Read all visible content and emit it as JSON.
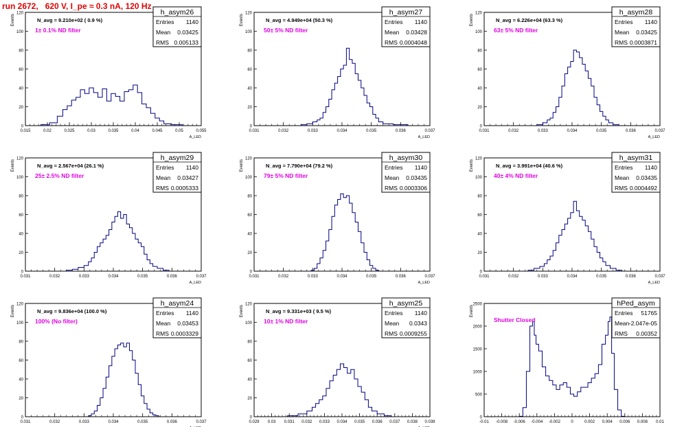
{
  "page_title": "run 2672,   620 V, I_pe ≈ 0.3 nA, 120 Hz",
  "stats_labels": {
    "entries": "Entries",
    "mean": "Mean",
    "rms": "RMS"
  },
  "chart_data": [
    {
      "type": "bar",
      "hist_name": "h_asym26",
      "navg_label": "N_avg = 9.210e+02 ( 0.9 %)",
      "filter_label": "1± 0.1% ND filter",
      "ylabel": "Events",
      "xlabel": "A_LED",
      "xlim": [
        0.015,
        0.055
      ],
      "ylim": [
        0,
        120
      ],
      "xticks": [
        0.015,
        0.02,
        0.025,
        0.03,
        0.035,
        0.04,
        0.045,
        0.05,
        0.055
      ],
      "yticks": [
        0,
        20,
        40,
        60,
        80,
        100,
        120
      ],
      "stats": {
        "entries": "1140",
        "mean": "0.03425",
        "rms": "0.005133"
      },
      "x": [
        0.0195,
        0.0215,
        0.023,
        0.024,
        0.025,
        0.026,
        0.027,
        0.028,
        0.029,
        0.03,
        0.031,
        0.032,
        0.033,
        0.034,
        0.035,
        0.036,
        0.037,
        0.038,
        0.039,
        0.04,
        0.041,
        0.042,
        0.043,
        0.044,
        0.045,
        0.046,
        0.047,
        0.0495
      ],
      "values": [
        1,
        3,
        10,
        17,
        21,
        27,
        30,
        38,
        34,
        40,
        35,
        30,
        39,
        26,
        34,
        31,
        26,
        36,
        38,
        43,
        35,
        23,
        19,
        13,
        8,
        5,
        2,
        1
      ]
    },
    {
      "type": "bar",
      "hist_name": "h_asym27",
      "navg_label": "N_avg = 4.949e+04 (50.3 %)",
      "filter_label": "50± 5% ND filter",
      "ylabel": "Events",
      "xlabel": "A_LED",
      "xlim": [
        0.031,
        0.037
      ],
      "ylim": [
        0,
        120
      ],
      "xticks": [
        0.031,
        0.032,
        0.033,
        0.034,
        0.035,
        0.036,
        0.037
      ],
      "yticks": [
        0,
        20,
        40,
        60,
        80,
        100,
        120
      ],
      "stats": {
        "entries": "1140",
        "mean": "0.03428",
        "rms": "0.0004048"
      },
      "x": [
        0.0327,
        0.0329,
        0.0331,
        0.0332,
        0.0333,
        0.0334,
        0.0335,
        0.0336,
        0.0337,
        0.0338,
        0.0339,
        0.034,
        0.0341,
        0.0342,
        0.0343,
        0.0344,
        0.0345,
        0.0346,
        0.0347,
        0.0348,
        0.0349,
        0.035,
        0.0351,
        0.0352,
        0.0353,
        0.0355,
        0.036
      ],
      "values": [
        1,
        2,
        4,
        6,
        8,
        14,
        20,
        28,
        38,
        45,
        52,
        60,
        64,
        82,
        70,
        66,
        55,
        48,
        40,
        32,
        24,
        20,
        12,
        8,
        4,
        2,
        1
      ]
    },
    {
      "type": "bar",
      "hist_name": "h_asym28",
      "navg_label": "N_avg = 6.226e+04 (63.3 %)",
      "filter_label": "63± 5% ND filter",
      "ylabel": "Events",
      "xlabel": "A_LED",
      "xlim": [
        0.031,
        0.037
      ],
      "ylim": [
        0,
        120
      ],
      "xticks": [
        0.031,
        0.032,
        0.033,
        0.034,
        0.035,
        0.036,
        0.037
      ],
      "yticks": [
        0,
        20,
        40,
        60,
        80,
        100,
        120
      ],
      "stats": {
        "entries": "1140",
        "mean": "0.03425",
        "rms": "0.0003871"
      },
      "x": [
        0.0329,
        0.0331,
        0.0332,
        0.0333,
        0.0334,
        0.0335,
        0.0336,
        0.0337,
        0.0338,
        0.0339,
        0.034,
        0.0341,
        0.0342,
        0.0343,
        0.0344,
        0.0345,
        0.0346,
        0.0347,
        0.0348,
        0.0349,
        0.035,
        0.0351,
        0.0352,
        0.0353,
        0.0355
      ],
      "values": [
        1,
        3,
        6,
        8,
        14,
        20,
        30,
        42,
        55,
        62,
        68,
        80,
        78,
        72,
        65,
        58,
        50,
        42,
        30,
        22,
        15,
        10,
        6,
        3,
        1
      ]
    },
    {
      "type": "bar",
      "hist_name": "h_asym29",
      "navg_label": "N_avg = 2.567e+04 (26.1 %)",
      "filter_label": "25± 2.5% ND filter",
      "ylabel": "Events",
      "xlabel": "A_LED",
      "xlim": [
        0.031,
        0.037
      ],
      "ylim": [
        0,
        120
      ],
      "xticks": [
        0.031,
        0.032,
        0.033,
        0.034,
        0.035,
        0.036,
        0.037
      ],
      "yticks": [
        0,
        20,
        40,
        60,
        80,
        100,
        120
      ],
      "stats": {
        "entries": "1140",
        "mean": "0.03427",
        "rms": "0.0005333"
      },
      "x": [
        0.0325,
        0.0327,
        0.0329,
        0.0331,
        0.0332,
        0.0333,
        0.0334,
        0.0335,
        0.0336,
        0.0337,
        0.0338,
        0.0339,
        0.034,
        0.0341,
        0.0342,
        0.0343,
        0.0344,
        0.0345,
        0.0346,
        0.0347,
        0.0348,
        0.0349,
        0.035,
        0.0351,
        0.0352,
        0.0353,
        0.0354,
        0.0356,
        0.0358
      ],
      "values": [
        1,
        2,
        4,
        6,
        10,
        14,
        20,
        26,
        30,
        34,
        38,
        44,
        52,
        58,
        63,
        56,
        60,
        50,
        46,
        40,
        34,
        30,
        26,
        18,
        12,
        8,
        5,
        3,
        1
      ]
    },
    {
      "type": "bar",
      "hist_name": "h_asym30",
      "navg_label": "N_avg = 7.790e+04 (79.2 %)",
      "filter_label": "79± 5% ND filter",
      "ylabel": "Events",
      "xlabel": "A_LED",
      "xlim": [
        0.031,
        0.037
      ],
      "ylim": [
        0,
        120
      ],
      "xticks": [
        0.031,
        0.032,
        0.033,
        0.034,
        0.035,
        0.036,
        0.037
      ],
      "yticks": [
        0,
        20,
        40,
        60,
        80,
        100,
        120
      ],
      "stats": {
        "entries": "1140",
        "mean": "0.03435",
        "rms": "0.0003306"
      },
      "x": [
        0.033,
        0.0331,
        0.0332,
        0.0333,
        0.0334,
        0.0335,
        0.0336,
        0.0337,
        0.0338,
        0.0339,
        0.034,
        0.0341,
        0.0342,
        0.0343,
        0.0344,
        0.0345,
        0.0346,
        0.0347,
        0.0348,
        0.0349,
        0.035,
        0.0351,
        0.0352
      ],
      "values": [
        1,
        3,
        8,
        14,
        22,
        32,
        44,
        58,
        70,
        76,
        82,
        78,
        80,
        72,
        62,
        52,
        42,
        30,
        20,
        12,
        6,
        3,
        1
      ]
    },
    {
      "type": "bar",
      "hist_name": "h_asym31",
      "navg_label": "N_avg = 3.991e+04 (40.6 %)",
      "filter_label": "40± 4% ND filter",
      "ylabel": "Events",
      "xlabel": "A_LED",
      "xlim": [
        0.031,
        0.037
      ],
      "ylim": [
        0,
        120
      ],
      "xticks": [
        0.031,
        0.032,
        0.033,
        0.034,
        0.035,
        0.036,
        0.037
      ],
      "yticks": [
        0,
        20,
        40,
        60,
        80,
        100,
        120
      ],
      "stats": {
        "entries": "1140",
        "mean": "0.03435",
        "rms": "0.0004492"
      },
      "x": [
        0.0326,
        0.0328,
        0.033,
        0.0331,
        0.0332,
        0.0333,
        0.0334,
        0.0335,
        0.0336,
        0.0337,
        0.0338,
        0.0339,
        0.034,
        0.0341,
        0.0342,
        0.0343,
        0.0344,
        0.0345,
        0.0346,
        0.0347,
        0.0348,
        0.0349,
        0.035,
        0.0351,
        0.0352,
        0.0354,
        0.0356
      ],
      "values": [
        1,
        3,
        5,
        8,
        12,
        16,
        22,
        30,
        38,
        44,
        50,
        56,
        62,
        74,
        64,
        58,
        54,
        48,
        42,
        34,
        26,
        20,
        14,
        10,
        6,
        3,
        1
      ]
    },
    {
      "type": "bar",
      "hist_name": "h_asym24",
      "navg_label": "N_avg = 9.836e+04 (100.0 %)",
      "filter_label": "100% (No filter)",
      "ylabel": "Events",
      "xlabel": "A_LED",
      "xlim": [
        0.031,
        0.037
      ],
      "ylim": [
        0,
        120
      ],
      "xticks": [
        0.031,
        0.032,
        0.033,
        0.034,
        0.035,
        0.036,
        0.037
      ],
      "yticks": [
        0,
        20,
        40,
        60,
        80,
        100,
        120
      ],
      "stats": {
        "entries": "1140",
        "mean": "0.03453",
        "rms": "0.0003329"
      },
      "x": [
        0.0332,
        0.0333,
        0.0334,
        0.0335,
        0.0336,
        0.0337,
        0.0338,
        0.0339,
        0.034,
        0.0341,
        0.0342,
        0.0343,
        0.0344,
        0.0345,
        0.0346,
        0.0347,
        0.0348,
        0.0349,
        0.035,
        0.0351,
        0.0352,
        0.0353,
        0.0354,
        0.0355
      ],
      "values": [
        1,
        3,
        6,
        12,
        20,
        30,
        42,
        54,
        64,
        72,
        76,
        78,
        74,
        78,
        70,
        60,
        46,
        34,
        22,
        14,
        8,
        4,
        2,
        1
      ]
    },
    {
      "type": "bar",
      "hist_name": "h_asym25",
      "navg_label": "N_avg = 9.331e+03 ( 9.5 %)",
      "filter_label": "10± 1% ND filter",
      "ylabel": "Events",
      "xlabel": "A_LED",
      "xlim": [
        0.029,
        0.039
      ],
      "ylim": [
        0,
        120
      ],
      "xticks": [
        0.029,
        0.03,
        0.031,
        0.032,
        0.033,
        0.034,
        0.035,
        0.036,
        0.037,
        0.038,
        0.039
      ],
      "yticks": [
        0,
        20,
        40,
        60,
        80,
        100,
        120
      ],
      "stats": {
        "entries": "1140",
        "mean": "0.0343",
        "rms": "0.0009255"
      },
      "x": [
        0.0312,
        0.0318,
        0.0322,
        0.0324,
        0.0326,
        0.0328,
        0.033,
        0.0332,
        0.0334,
        0.0336,
        0.0338,
        0.034,
        0.0342,
        0.0344,
        0.0346,
        0.0348,
        0.035,
        0.0352,
        0.0354,
        0.0356,
        0.0358,
        0.0362,
        0.0366
      ],
      "values": [
        1,
        3,
        6,
        10,
        14,
        18,
        22,
        30,
        38,
        44,
        50,
        56,
        52,
        46,
        50,
        40,
        32,
        26,
        18,
        10,
        6,
        3,
        1
      ]
    },
    {
      "type": "bar",
      "hist_name": "hPed_asym",
      "navg_label": "",
      "filter_label": "Shutter Closed",
      "ylabel": "Events",
      "xlabel": "",
      "xlim": [
        -0.01,
        0.01
      ],
      "ylim": [
        0,
        2500
      ],
      "xticks": [
        -0.01,
        -0.008,
        -0.006,
        -0.004,
        -0.002,
        0,
        0.002,
        0.004,
        0.006,
        0.008,
        0.01
      ],
      "yticks": [
        0,
        500,
        1000,
        1500,
        2000,
        2500
      ],
      "stats": {
        "entries": "51765",
        "mean": "-2.047e-05",
        "rms": "0.00352"
      },
      "x": [
        -0.0058,
        -0.0054,
        -0.005,
        -0.0046,
        -0.0044,
        -0.0042,
        -0.004,
        -0.0036,
        -0.0032,
        -0.0028,
        -0.0024,
        -0.002,
        -0.0016,
        -0.0012,
        -0.0008,
        -0.0004,
        0.0,
        0.0004,
        0.0008,
        0.0012,
        0.0016,
        0.002,
        0.0024,
        0.0028,
        0.0032,
        0.0036,
        0.004,
        0.0042,
        0.0044,
        0.0046,
        0.005,
        0.0054,
        0.0058
      ],
      "values": [
        10,
        200,
        1000,
        2000,
        2100,
        1800,
        1600,
        1450,
        1100,
        900,
        800,
        700,
        600,
        700,
        750,
        650,
        500,
        450,
        550,
        650,
        650,
        750,
        850,
        950,
        1150,
        1600,
        1800,
        2100,
        2200,
        1400,
        600,
        150,
        10
      ]
    }
  ]
}
